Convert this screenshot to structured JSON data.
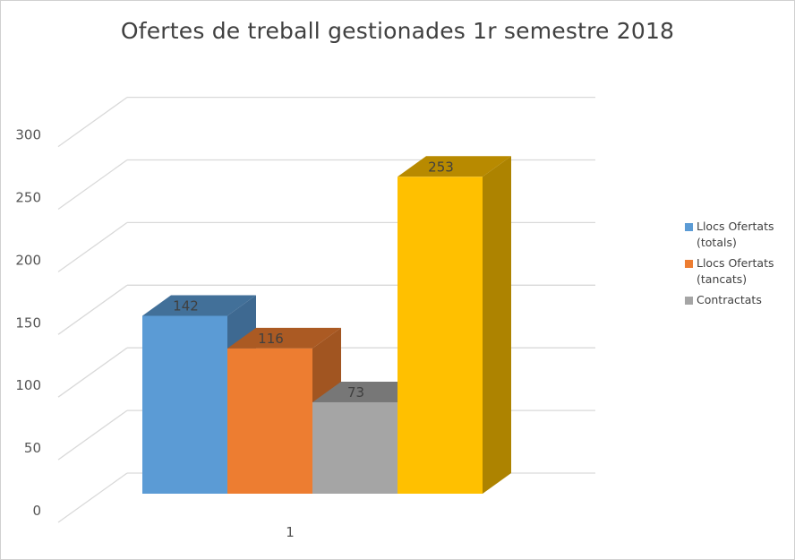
{
  "chart_data": {
    "type": "bar",
    "title": "Ofertes de treball gestionades 1r semestre 2018",
    "categories": [
      "1"
    ],
    "series": [
      {
        "name": "Llocs Ofertats (totals)",
        "values": [
          142
        ],
        "color": "#5b9bd5"
      },
      {
        "name": "Llocs Ofertats (tancats)",
        "values": [
          116
        ],
        "color": "#ed7d31"
      },
      {
        "name": "Contractats",
        "values": [
          73
        ],
        "color": "#a5a5a5"
      },
      {
        "name": "",
        "values": [
          253
        ],
        "color": "#ffc000"
      }
    ],
    "xlabel": "",
    "ylabel": "",
    "ylim": [
      0,
      300
    ],
    "yticks": [
      0,
      50,
      100,
      150,
      200,
      250,
      300
    ],
    "grid": true,
    "legend_position": "right",
    "three_d": true
  },
  "legend_entries": [
    {
      "label": "Llocs Ofertats\n(totals)",
      "color": "#5b9bd5"
    },
    {
      "label": "Llocs Ofertats\n(tancats)",
      "color": "#ed7d31"
    },
    {
      "label": "Contractats",
      "color": "#a5a5a5"
    }
  ]
}
